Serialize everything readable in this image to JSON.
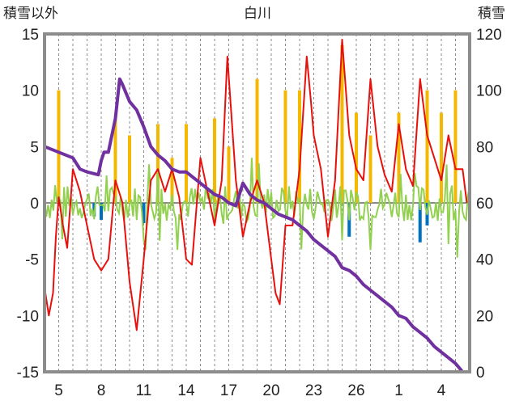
{
  "chart_data": {
    "type": "line",
    "title": "白川",
    "ylabel_left": "積雪以外",
    "ylabel_right": "積雪",
    "ylim_left": [
      -15,
      15
    ],
    "ylim_right": [
      0,
      120
    ],
    "yticks_left": [
      "15",
      "10",
      "5",
      "0",
      "-5",
      "-10",
      "-15"
    ],
    "yticks_right": [
      "120",
      "100",
      "80",
      "60",
      "40",
      "20",
      "0"
    ],
    "xticks": [
      "5",
      "8",
      "11",
      "14",
      "17",
      "20",
      "23",
      "26",
      "1",
      "4"
    ],
    "xtick_day_index": [
      1,
      4,
      7,
      10,
      13,
      16,
      19,
      22,
      25,
      28
    ],
    "x_days": 30,
    "grid": "vertical dashed daily",
    "colors": {
      "temperature": "#e8100c",
      "precipitation": "#f5b800",
      "snow_depth": "#7030a0",
      "wind": "#92d050",
      "negative_bar": "#0070c0",
      "frame": "#8c8c8c"
    },
    "series": [
      {
        "axis": "left",
        "color": "#e8100c",
        "points": [
          [
            0,
            -7.5
          ],
          [
            0.3,
            -10
          ],
          [
            0.6,
            -8
          ],
          [
            0.8,
            -3
          ],
          [
            1.0,
            0.5
          ],
          [
            1.3,
            -2
          ],
          [
            1.6,
            -4
          ],
          [
            2.0,
            3
          ],
          [
            2.5,
            1
          ],
          [
            3.0,
            -2
          ],
          [
            3.5,
            -5
          ],
          [
            4.0,
            -6
          ],
          [
            4.5,
            -5
          ],
          [
            5.0,
            2
          ],
          [
            5.5,
            0
          ],
          [
            6.0,
            -7
          ],
          [
            6.5,
            -11.3
          ],
          [
            7.0,
            -5
          ],
          [
            7.5,
            2
          ],
          [
            8.0,
            3
          ],
          [
            8.5,
            1
          ],
          [
            9.0,
            3
          ],
          [
            9.5,
            0.5
          ],
          [
            10.0,
            -5
          ],
          [
            10.4,
            -5.5
          ],
          [
            11.0,
            4
          ],
          [
            11.5,
            1
          ],
          [
            12.0,
            -2
          ],
          [
            12.5,
            2
          ],
          [
            12.9,
            13
          ],
          [
            13.5,
            2
          ],
          [
            14.0,
            -3
          ],
          [
            14.5,
            0
          ],
          [
            15.0,
            2
          ],
          [
            15.5,
            0
          ],
          [
            16.0,
            -5
          ],
          [
            16.3,
            -8
          ],
          [
            16.6,
            -9
          ],
          [
            17.0,
            -2
          ],
          [
            17.5,
            -2
          ],
          [
            18.0,
            3
          ],
          [
            18.5,
            13
          ],
          [
            18.8,
            9
          ],
          [
            19.0,
            6
          ],
          [
            19.5,
            3
          ],
          [
            20.0,
            -3
          ],
          [
            20.5,
            2
          ],
          [
            21.0,
            14.5
          ],
          [
            21.5,
            6
          ],
          [
            22.0,
            3
          ],
          [
            22.5,
            2
          ],
          [
            23.0,
            11
          ],
          [
            23.5,
            5
          ],
          [
            24.0,
            2.5
          ],
          [
            24.5,
            1
          ],
          [
            25.0,
            7
          ],
          [
            25.5,
            3
          ],
          [
            26.0,
            1.5
          ],
          [
            26.5,
            11
          ],
          [
            27.0,
            6
          ],
          [
            27.5,
            4
          ],
          [
            28.0,
            2
          ],
          [
            28.5,
            6
          ],
          [
            29.0,
            3
          ],
          [
            29.5,
            3
          ],
          [
            29.8,
            0
          ]
        ]
      },
      {
        "axis": "right",
        "color": "#7030a0",
        "points": [
          [
            0,
            80
          ],
          [
            0.5,
            79
          ],
          [
            1,
            78
          ],
          [
            2,
            76
          ],
          [
            2.5,
            72
          ],
          [
            3,
            71
          ],
          [
            3.8,
            70
          ],
          [
            4,
            75
          ],
          [
            4.2,
            78
          ],
          [
            4.5,
            78
          ],
          [
            5,
            90
          ],
          [
            5.3,
            104
          ],
          [
            5.5,
            102
          ],
          [
            6,
            96
          ],
          [
            6.5,
            93
          ],
          [
            7,
            87
          ],
          [
            7.5,
            80
          ],
          [
            8,
            77
          ],
          [
            8.5,
            75
          ],
          [
            9,
            72
          ],
          [
            9.5,
            71
          ],
          [
            10,
            71
          ],
          [
            10.5,
            69
          ],
          [
            11,
            67
          ],
          [
            11.5,
            65
          ],
          [
            12,
            63
          ],
          [
            12.5,
            62
          ],
          [
            13,
            60
          ],
          [
            13.5,
            59
          ],
          [
            14,
            67
          ],
          [
            14.5,
            63
          ],
          [
            15,
            61
          ],
          [
            15.5,
            60
          ],
          [
            16,
            58
          ],
          [
            16.5,
            56
          ],
          [
            17,
            55
          ],
          [
            17.5,
            54
          ],
          [
            18,
            52
          ],
          [
            18.5,
            50
          ],
          [
            19,
            47
          ],
          [
            19.5,
            45
          ],
          [
            20,
            43
          ],
          [
            20.5,
            41
          ],
          [
            21,
            37
          ],
          [
            21.5,
            36
          ],
          [
            22,
            34
          ],
          [
            22.5,
            31
          ],
          [
            23,
            29
          ],
          [
            23.5,
            27
          ],
          [
            24,
            25
          ],
          [
            24.5,
            23
          ],
          [
            25,
            20
          ],
          [
            25.5,
            19
          ],
          [
            26,
            16
          ],
          [
            26.5,
            14
          ],
          [
            27,
            12
          ],
          [
            27.5,
            9
          ],
          [
            28,
            7
          ],
          [
            28.5,
            5
          ],
          [
            29,
            3
          ],
          [
            29.5,
            0
          ],
          [
            30,
            0
          ]
        ]
      }
    ],
    "bars_precip": [
      [
        0,
        10
      ],
      [
        1,
        10
      ],
      [
        5,
        7.5
      ],
      [
        6,
        6
      ],
      [
        8,
        7
      ],
      [
        9,
        4
      ],
      [
        10,
        7
      ],
      [
        12,
        7.5
      ],
      [
        13,
        5
      ],
      [
        15,
        11
      ],
      [
        17,
        10
      ],
      [
        18,
        10
      ],
      [
        21,
        14
      ],
      [
        22,
        8
      ],
      [
        23,
        6
      ],
      [
        25,
        8
      ],
      [
        27,
        10
      ],
      [
        28,
        8
      ],
      [
        29,
        10
      ]
    ],
    "bars_negative": [
      [
        3.5,
        -1.2
      ],
      [
        4,
        -1.5
      ],
      [
        7,
        -1.8
      ],
      [
        21.5,
        -3
      ],
      [
        26.5,
        -3.5
      ],
      [
        27,
        -2
      ]
    ],
    "wind_range": [
      -5,
      5
    ]
  }
}
